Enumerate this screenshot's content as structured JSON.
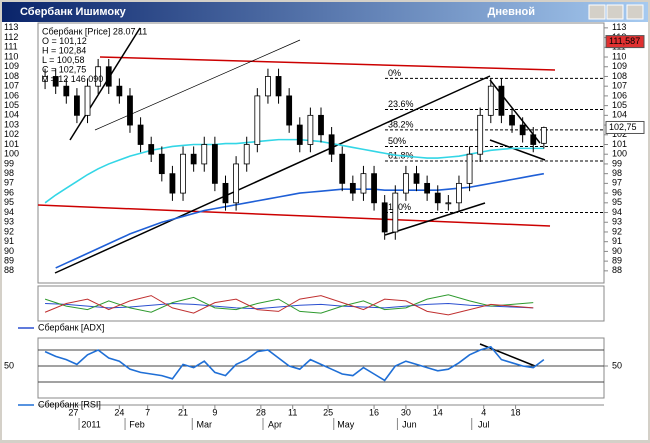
{
  "window": {
    "title": "Сбербанк Ишимоку",
    "timeframe": "Дневной"
  },
  "chart_data": [
    {
      "type": "candlestick",
      "legend_lines": [
        "Сбербанк [Price] 28.07.11",
        "O = 101,12",
        "H = 102,84",
        "L = 100,58",
        "C = 102,75",
        "V = 12 146 090"
      ],
      "x": [
        2,
        5,
        8,
        11,
        14,
        17,
        20,
        23,
        26,
        29,
        32,
        35,
        38,
        41,
        44,
        47,
        50,
        53,
        56,
        59,
        62,
        65,
        68,
        71,
        74,
        77,
        80,
        83,
        86,
        89,
        92,
        95,
        98,
        101,
        104,
        107,
        110,
        113,
        116,
        119,
        122,
        125,
        128,
        131,
        134,
        137,
        140,
        143
      ],
      "open": [
        107.5,
        108,
        107,
        106,
        104,
        107,
        109,
        107,
        106,
        103,
        101,
        100,
        98,
        96,
        100,
        99,
        101,
        97,
        95,
        99,
        101,
        106,
        108,
        106,
        103,
        101,
        104,
        102,
        100,
        97,
        96,
        98,
        95,
        92,
        96,
        98,
        97,
        96,
        95,
        95,
        97,
        100,
        104,
        107,
        104,
        103,
        102,
        101.12
      ],
      "high": [
        108.8,
        108.8,
        107.8,
        106.8,
        107.8,
        109.8,
        109.8,
        107.8,
        106.8,
        103.8,
        101.8,
        100.8,
        98.8,
        100.8,
        100.8,
        101.8,
        101.8,
        97.8,
        99.8,
        101.8,
        106.8,
        108.8,
        108.8,
        106.8,
        103.8,
        104.8,
        104.8,
        102.8,
        100.8,
        97.8,
        98.8,
        98.8,
        95.8,
        96.8,
        98.8,
        98.8,
        97.8,
        96.8,
        95.8,
        97.8,
        100.8,
        104.8,
        107.8,
        107.8,
        104.8,
        103.8,
        102.8,
        102.84
      ],
      "low": [
        106.7,
        106.2,
        105.2,
        103.2,
        103.2,
        106.2,
        106.2,
        105.2,
        102.2,
        100.2,
        99.2,
        97.2,
        95.2,
        95.2,
        98.2,
        98.2,
        96.2,
        94.2,
        94.2,
        98.2,
        100.2,
        105.2,
        105.2,
        102.2,
        100.2,
        100.2,
        101.2,
        99.2,
        96.2,
        95.2,
        95.2,
        94.2,
        91.2,
        91.2,
        95.2,
        96.2,
        95.2,
        94.2,
        94.2,
        94.2,
        96.2,
        99.2,
        103.2,
        103.2,
        102.2,
        101.2,
        100.2,
        100.58
      ],
      "close": [
        108,
        107,
        106,
        104,
        107,
        109,
        107,
        106,
        103,
        101,
        100,
        98,
        96,
        100,
        99,
        101,
        97,
        95,
        99,
        101,
        106,
        108,
        106,
        103,
        101,
        104,
        102,
        100,
        97,
        96,
        98,
        95,
        92,
        96,
        98,
        97,
        96,
        95,
        95,
        97,
        100,
        104,
        107,
        104,
        103,
        102,
        101,
        102.75
      ],
      "overlays": [
        {
          "color": "#1f5fd6",
          "values": [
            null,
            88.3,
            88.8,
            89.3,
            89.8,
            90.3,
            90.8,
            91.3,
            91.8,
            92.2,
            92.6,
            93,
            93.3,
            93.6,
            93.9,
            94.2,
            94.4,
            94.6,
            94.8,
            95,
            95.2,
            95.4,
            95.6,
            95.8,
            96,
            96.1,
            96.2,
            96.3,
            96.4,
            96.4,
            96.4,
            96.4,
            96.3,
            96.3,
            96.3,
            96.3,
            96.3,
            96.3,
            96.4,
            96.5,
            96.6,
            96.8,
            97,
            97.2,
            97.4,
            97.6,
            97.8,
            98
          ]
        },
        {
          "color": "#33d6e6",
          "values": [
            95,
            95.8,
            96.5,
            97.2,
            97.9,
            98.5,
            99,
            99.4,
            99.8,
            100.1,
            100.4,
            100.6,
            100.8,
            100.9,
            101,
            101,
            101,
            101.1,
            101.1,
            101.2,
            101.3,
            101.4,
            101.5,
            101.5,
            101.5,
            101.4,
            101.3,
            101.1,
            100.9,
            100.7,
            100.5,
            100.3,
            100.1,
            99.9,
            99.8,
            99.7,
            99.6,
            99.6,
            99.7,
            99.8,
            100,
            100.2,
            100.4,
            100.5,
            100.6,
            100.6,
            100.6,
            100.6
          ]
        }
      ],
      "xlim": [
        0,
        160
      ],
      "xticks": [
        {
          "value": 10,
          "label": "27"
        },
        {
          "value": 23,
          "label": "24"
        },
        {
          "value": 31,
          "label": "7"
        },
        {
          "value": 41,
          "label": "21"
        },
        {
          "value": 50,
          "label": "9"
        },
        {
          "value": 63,
          "label": "28"
        },
        {
          "value": 72,
          "label": "11"
        },
        {
          "value": 82,
          "label": "25"
        },
        {
          "value": 95,
          "label": "16"
        },
        {
          "value": 104,
          "label": "30"
        },
        {
          "value": 113,
          "label": "14"
        },
        {
          "value": 126,
          "label": "4"
        },
        {
          "value": 135,
          "label": "18"
        }
      ],
      "month_ticks": [
        {
          "value": 15,
          "label": "2011"
        },
        {
          "value": 28,
          "label": "Feb"
        },
        {
          "value": 47,
          "label": "Mar"
        },
        {
          "value": 67,
          "label": "Apr"
        },
        {
          "value": 87,
          "label": "May"
        },
        {
          "value": 105,
          "label": "Jun"
        },
        {
          "value": 126,
          "label": "Jul"
        }
      ],
      "ylim": [
        86.75,
        113.5
      ],
      "yticks": [
        88,
        89,
        90,
        91,
        92,
        93,
        94,
        95,
        96,
        97,
        98,
        99,
        100,
        101,
        102,
        103,
        104,
        105,
        106,
        107,
        108,
        109,
        110,
        111,
        112,
        113
      ],
      "fib_levels": [
        {
          "value": 107.8,
          "label": "0%"
        },
        {
          "value": 104.6,
          "label": "23.6%"
        },
        {
          "value": 102.5,
          "label": "38.2%"
        },
        {
          "value": 100.8,
          "label": "50%"
        },
        {
          "value": 99.3,
          "label": "61.8%"
        },
        {
          "value": 94,
          "label": "100%"
        }
      ],
      "price_markers": [
        {
          "value": 111.587,
          "label": "111,587",
          "color": "#e03030"
        },
        {
          "value": 102.75,
          "label": "102,75",
          "color": "#ffffff"
        }
      ]
    },
    {
      "type": "line",
      "label": "Сбербанк [ADX]",
      "x": [
        2,
        8,
        14,
        20,
        26,
        32,
        38,
        44,
        50,
        56,
        62,
        68,
        74,
        80,
        86,
        92,
        98,
        104,
        110,
        116,
        122,
        128,
        134,
        140
      ],
      "series": [
        {
          "color": "#2b4fd0",
          "values": [
            25,
            24,
            22,
            20,
            21,
            23,
            25,
            24,
            22,
            20,
            19,
            21,
            23,
            24,
            22,
            21,
            20,
            22,
            24,
            25,
            23,
            22,
            21,
            20
          ]
        },
        {
          "color": "#2e9a2e",
          "values": [
            30,
            22,
            18,
            28,
            20,
            15,
            26,
            32,
            20,
            18,
            25,
            30,
            16,
            14,
            22,
            28,
            18,
            20,
            30,
            35,
            28,
            22,
            24,
            26
          ]
        },
        {
          "color": "#c03030",
          "values": [
            15,
            25,
            30,
            18,
            28,
            34,
            20,
            14,
            26,
            30,
            18,
            16,
            30,
            34,
            26,
            18,
            30,
            28,
            16,
            12,
            18,
            24,
            22,
            20
          ]
        }
      ],
      "xlim": [
        0,
        160
      ],
      "ylim": [
        5,
        45
      ]
    },
    {
      "type": "line",
      "label": "Сбербанк [RSI]",
      "x": [
        2,
        5,
        8,
        11,
        14,
        17,
        20,
        23,
        26,
        29,
        32,
        35,
        38,
        41,
        44,
        47,
        50,
        53,
        56,
        59,
        62,
        65,
        68,
        71,
        74,
        77,
        80,
        83,
        86,
        89,
        92,
        95,
        98,
        101,
        104,
        107,
        110,
        113,
        116,
        119,
        122,
        125,
        128,
        131,
        134,
        137,
        140,
        143
      ],
      "series": [
        {
          "color": "#1f6fd6",
          "values": [
            68,
            62,
            58,
            52,
            64,
            70,
            60,
            56,
            46,
            42,
            40,
            38,
            34,
            52,
            48,
            56,
            42,
            38,
            52,
            58,
            68,
            70,
            60,
            50,
            46,
            58,
            52,
            46,
            40,
            38,
            48,
            40,
            32,
            50,
            56,
            52,
            48,
            44,
            46,
            54,
            64,
            70,
            74,
            58,
            54,
            50,
            48,
            58
          ]
        }
      ],
      "xlim": [
        0,
        160
      ],
      "ylim": [
        10,
        85
      ],
      "yticks": [
        50
      ],
      "levels": [
        30,
        70
      ]
    }
  ]
}
